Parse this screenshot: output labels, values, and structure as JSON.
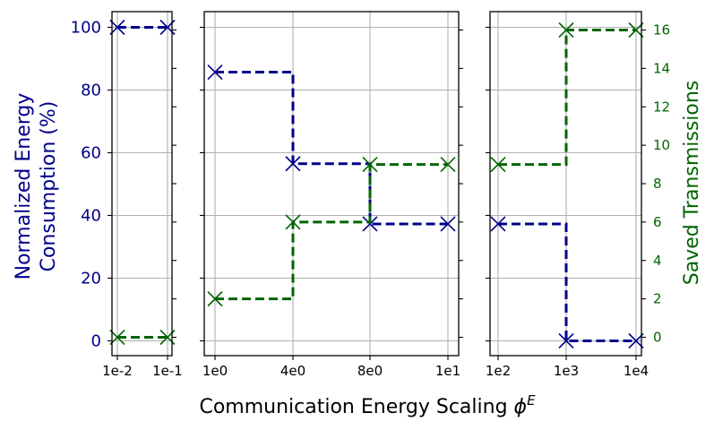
{
  "colors": {
    "energy": "#00008b",
    "saved": "#006400",
    "grid": "#b0b0b0",
    "axis": "#000000"
  },
  "labels": {
    "ylabel_left_line1": "Normalized Energy",
    "ylabel_left_line2": "Consumption (%)",
    "ylabel_right": "Saved Transmissions",
    "xlabel": "Communication Energy Scaling",
    "xlabel_symbol": "ϕ",
    "xlabel_superscript": "E"
  },
  "chart_data": {
    "type": "line",
    "style": "step",
    "marker": "x",
    "grid": true,
    "panels": [
      {
        "x_ticks": [
          "1e-2",
          "1e-1"
        ],
        "energy": [
          100,
          100
        ],
        "saved": [
          0,
          0
        ]
      },
      {
        "x_ticks": [
          "1e0",
          "4e0",
          "8e0",
          "1e1"
        ],
        "energy": [
          85.7,
          56.5,
          37.3,
          37.3
        ],
        "saved": [
          2,
          6,
          9,
          9
        ]
      },
      {
        "x_ticks": [
          "1e2",
          "1e3",
          "1e4"
        ],
        "energy": [
          37.3,
          0,
          0
        ],
        "saved": [
          9,
          16,
          16
        ]
      }
    ],
    "y_left": {
      "range": [
        -5,
        105
      ],
      "ticks": [
        0,
        20,
        40,
        60,
        80,
        100
      ]
    },
    "y_right": {
      "range": [
        -1,
        17
      ],
      "ticks": [
        0,
        2,
        4,
        6,
        8,
        10,
        12,
        14,
        16
      ]
    }
  }
}
